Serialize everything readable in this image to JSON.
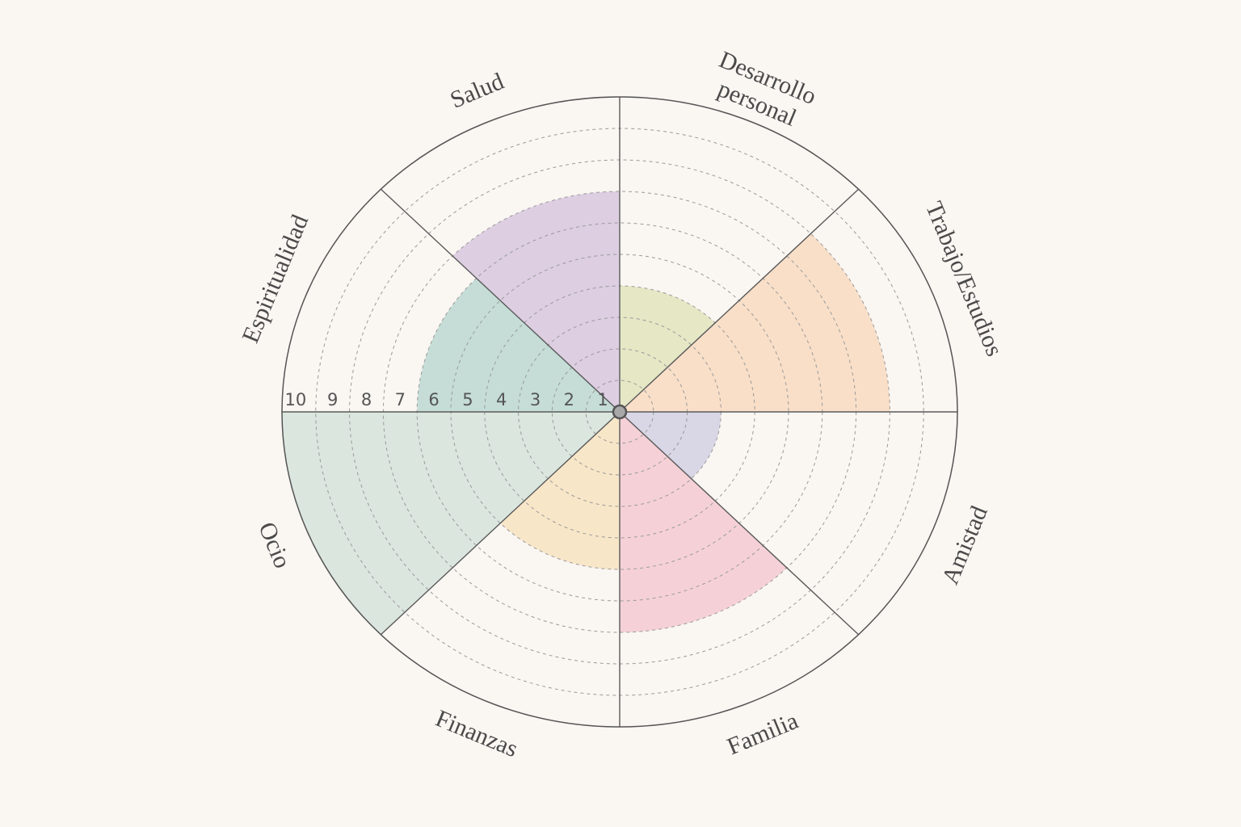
{
  "scale_labels": [
    "1",
    "2",
    "3",
    "4",
    "5",
    "6",
    "7",
    "8",
    "9",
    "10"
  ],
  "segments": [
    {
      "label": "Desarrollo personal",
      "lines": [
        "Desarrollo",
        "personal"
      ],
      "value": 4,
      "color": "#dfe3b8"
    },
    {
      "label": "Trabajo/Estudios",
      "lines": [
        "Trabajo/Estudios"
      ],
      "value": 8,
      "color": "#f9d8bd"
    },
    {
      "label": "Amistad",
      "lines": [
        "Amistad"
      ],
      "value": 3,
      "color": "#cfcde3"
    },
    {
      "label": "Familia",
      "lines": [
        "Familia"
      ],
      "value": 7,
      "color": "#f3c7cf"
    },
    {
      "label": "Finanzas",
      "lines": [
        "Finanzas"
      ],
      "value": 5,
      "color": "#f7e2bd"
    },
    {
      "label": "Ocio",
      "lines": [
        "Ocio"
      ],
      "value": 10,
      "color": "#d2e2da"
    },
    {
      "label": "Espiritualidad",
      "lines": [
        "Espiritualidad"
      ],
      "value": 6,
      "color": "#b6d6ce"
    },
    {
      "label": "Salud",
      "lines": [
        "Salud"
      ],
      "value": 7,
      "color": "#d5c3de"
    }
  ],
  "chart_data": {
    "type": "radial-wheel",
    "max": 10,
    "categories": [
      "Desarrollo personal",
      "Trabajo/Estudios",
      "Amistad",
      "Familia",
      "Finanzas",
      "Ocio",
      "Espiritualidad",
      "Salud"
    ],
    "values": [
      4,
      8,
      3,
      7,
      5,
      10,
      6,
      7
    ]
  }
}
